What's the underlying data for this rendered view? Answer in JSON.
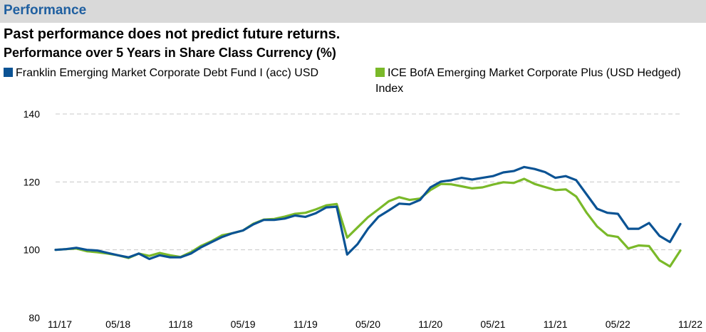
{
  "header": {
    "section_title": "Performance",
    "disclaimer": "Past performance does not predict future returns.",
    "chart_title": "Performance over 5 Years in Share Class Currency (%)"
  },
  "colors": {
    "fund": "#0b5394",
    "index": "#7ab929",
    "grid": "#c8c8c8",
    "header_bg": "#d9d9d9",
    "section_title": "#1f5fa0"
  },
  "chart_data": {
    "type": "line",
    "title": "Performance over 5 Years in Share Class Currency (%)",
    "xlabel": "",
    "ylabel": "",
    "ylim": [
      80,
      140
    ],
    "yticks": [
      80,
      100,
      120,
      140
    ],
    "grid": true,
    "legend_position": "top",
    "x_tick_labels": [
      "11/17",
      "05/18",
      "11/18",
      "05/19",
      "11/19",
      "05/20",
      "11/20",
      "05/21",
      "11/21",
      "05/22",
      "11/22"
    ],
    "x": [
      0,
      1,
      2,
      3,
      4,
      5,
      6,
      7,
      8,
      9,
      10,
      11,
      12,
      13,
      14,
      15,
      16,
      17,
      18,
      19,
      20,
      21,
      22,
      23,
      24,
      25,
      26,
      27,
      28,
      29,
      30,
      31,
      32,
      33,
      34,
      35,
      36,
      37,
      38,
      39,
      40,
      41,
      42,
      43,
      44,
      45,
      46,
      47,
      48,
      49,
      50,
      51,
      52,
      53,
      54,
      55,
      56,
      57,
      58,
      59,
      60
    ],
    "x_tick_index": [
      0,
      6,
      12,
      18,
      24,
      30,
      36,
      42,
      48,
      54,
      60
    ],
    "series": [
      {
        "name": "Franklin Emerging Market Corporate Debt Fund I (acc) USD",
        "color": "#0b5394",
        "values": [
          100,
          100.2,
          100.6,
          100,
          99.8,
          99.1,
          98.4,
          97.8,
          98.9,
          97.3,
          98.4,
          97.8,
          97.8,
          98.9,
          100.8,
          102.3,
          103.8,
          104.9,
          105.7,
          107.5,
          108.8,
          108.8,
          109.2,
          110.1,
          109.7,
          110.8,
          112.5,
          112.7,
          98.6,
          101.7,
          106.2,
          109.7,
          111.6,
          113.6,
          113.4,
          114.7,
          118.4,
          120.1,
          120.5,
          121.2,
          120.7,
          121.2,
          121.7,
          122.8,
          123.2,
          124.4,
          123.8,
          122.9,
          121.2,
          121.7,
          120.5,
          116.3,
          112.1,
          110.9,
          110.6,
          106.2,
          106.2,
          107.9,
          104.1,
          102.3,
          107.6
        ]
      },
      {
        "name": "ICE BofA Emerging Market Corporate Plus (USD Hedged) Index",
        "color": "#7ab929",
        "values": [
          100,
          100.2,
          100.4,
          99.6,
          99.3,
          98.9,
          98.4,
          97.6,
          98.9,
          98.2,
          99.1,
          98.4,
          97.9,
          99.3,
          101.2,
          102.6,
          104.3,
          104.9,
          105.7,
          107.7,
          108.9,
          109.1,
          109.8,
          110.6,
          110.9,
          111.9,
          113.1,
          113.5,
          103.6,
          106.6,
          109.6,
          111.9,
          114.3,
          115.5,
          114.7,
          115.1,
          117.6,
          119.4,
          119.3,
          118.7,
          118.1,
          118.4,
          119.2,
          119.9,
          119.7,
          120.9,
          119.4,
          118.5,
          117.6,
          117.8,
          115.7,
          110.9,
          106.9,
          104.3,
          103.8,
          100.4,
          101.3,
          101.1,
          96.9,
          95.1,
          99.8
        ]
      }
    ]
  }
}
